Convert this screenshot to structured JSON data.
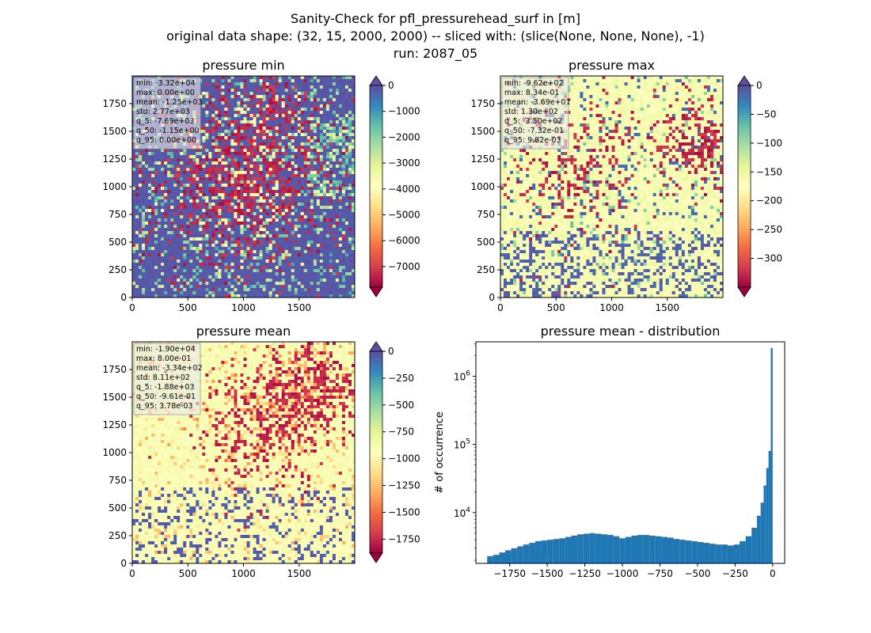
{
  "figure": {
    "title_lines": [
      "Sanity-Check for pfl_pressurehead_surf in [m]",
      "original data shape: (32, 15, 2000, 2000) -- sliced with: (slice(None, None, None), -1)",
      "run: 2087_05"
    ]
  },
  "chart_data": [
    {
      "type": "heatmap",
      "title": "pressure min",
      "xlim": [
        0,
        2000
      ],
      "ylim": [
        0,
        2000
      ],
      "x_ticks": [
        "0",
        "500",
        "1000",
        "1500"
      ],
      "y_ticks": [
        "0",
        "250",
        "500",
        "750",
        "1000",
        "1250",
        "1500",
        "1750"
      ],
      "colormap": "Spectral",
      "colorbar": {
        "range": [
          -7800,
          0
        ],
        "ticks": [
          0,
          -1000,
          -2000,
          -3000,
          -4000,
          -5000,
          -6000,
          -7000
        ],
        "tick_labels": [
          "0",
          "−1000",
          "−2000",
          "−3000",
          "−4000",
          "−5000",
          "−6000",
          "−7000"
        ],
        "extend": "both"
      },
      "stats": [
        "min: -3.32e+04",
        "max: 0.00e+00",
        "mean: -1.25e+03",
        "std: 2.77e+03",
        "q_5: -7.69e+03",
        "q_50: -1.15e+00",
        "q_95: 0.00e+00"
      ]
    },
    {
      "type": "heatmap",
      "title": "pressure max",
      "xlim": [
        0,
        2000
      ],
      "ylim": [
        0,
        2000
      ],
      "x_ticks": [
        "0",
        "500",
        "1000",
        "1500"
      ],
      "y_ticks": [
        "0",
        "250",
        "500",
        "750",
        "1000",
        "1250",
        "1500",
        "1750"
      ],
      "colormap": "Spectral",
      "colorbar": {
        "range": [
          -350,
          0
        ],
        "ticks": [
          0,
          -50,
          -100,
          -150,
          -200,
          -250,
          -300
        ],
        "tick_labels": [
          "0",
          "−50",
          "−100",
          "−150",
          "−200",
          "−250",
          "−300"
        ],
        "extend": "both"
      },
      "stats": [
        "min: -9.62e+02",
        "max: 8.34e-01",
        "mean: -3.69e+01",
        "std: 1.30e+02",
        "q_5: -3.50e+02",
        "q_50: -7.32e-01",
        "q_95: 9.82e-03"
      ]
    },
    {
      "type": "heatmap",
      "title": "pressure mean",
      "xlim": [
        0,
        2000
      ],
      "ylim": [
        0,
        2000
      ],
      "x_ticks": [
        "0",
        "500",
        "1000",
        "1500"
      ],
      "y_ticks": [
        "0",
        "250",
        "500",
        "750",
        "1000",
        "1250",
        "1500",
        "1750"
      ],
      "colormap": "Spectral",
      "colorbar": {
        "range": [
          -1880,
          0
        ],
        "ticks": [
          0,
          -250,
          -500,
          -750,
          -1000,
          -1250,
          -1500,
          -1750
        ],
        "tick_labels": [
          "0",
          "−250",
          "−500",
          "−750",
          "−1000",
          "−1250",
          "−1500",
          "−1750"
        ],
        "extend": "both"
      },
      "stats": [
        "min: -1.90e+04",
        "max: 8.00e-01",
        "mean: -3.34e+02",
        "std: 8.11e+02",
        "q_5: -1.88e+03",
        "q_50: -9.61e-01",
        "q_95: 3.78e-03"
      ]
    },
    {
      "type": "bar",
      "subtype": "histogram",
      "title": "pressure mean - distribution",
      "xlabel": "",
      "ylabel": "# of occurrence",
      "xlim": [
        -1975,
        80
      ],
      "ylim": [
        1800,
        3200000
      ],
      "yscale": "log",
      "x_ticks": [
        -1750,
        -1500,
        -1250,
        -1000,
        -750,
        -500,
        -250,
        0
      ],
      "x_tick_labels": [
        "−1750",
        "−1500",
        "−1250",
        "−1000",
        "−750",
        "−500",
        "−250",
        "0"
      ],
      "y_ticks": [
        10000,
        100000,
        1000000
      ],
      "y_tick_labels": [
        "10^4",
        "10^5",
        "10^6"
      ],
      "bar_color": "#1f77b4",
      "bins": [
        {
          "x": -1880,
          "count": 2300
        },
        {
          "x": -1840,
          "count": 2400
        },
        {
          "x": -1800,
          "count": 2600
        },
        {
          "x": -1760,
          "count": 2800
        },
        {
          "x": -1720,
          "count": 3000
        },
        {
          "x": -1680,
          "count": 3200
        },
        {
          "x": -1640,
          "count": 3400
        },
        {
          "x": -1600,
          "count": 3600
        },
        {
          "x": -1560,
          "count": 3800
        },
        {
          "x": -1520,
          "count": 3900
        },
        {
          "x": -1480,
          "count": 4000
        },
        {
          "x": -1440,
          "count": 4100
        },
        {
          "x": -1400,
          "count": 4200
        },
        {
          "x": -1360,
          "count": 4400
        },
        {
          "x": -1320,
          "count": 4600
        },
        {
          "x": -1280,
          "count": 4800
        },
        {
          "x": -1240,
          "count": 4900
        },
        {
          "x": -1200,
          "count": 5000
        },
        {
          "x": -1160,
          "count": 4900
        },
        {
          "x": -1120,
          "count": 4800
        },
        {
          "x": -1080,
          "count": 4700
        },
        {
          "x": -1040,
          "count": 4500
        },
        {
          "x": -1000,
          "count": 4200
        },
        {
          "x": -960,
          "count": 4400
        },
        {
          "x": -920,
          "count": 4600
        },
        {
          "x": -880,
          "count": 4700
        },
        {
          "x": -840,
          "count": 4700
        },
        {
          "x": -800,
          "count": 4600
        },
        {
          "x": -760,
          "count": 4500
        },
        {
          "x": -720,
          "count": 4400
        },
        {
          "x": -680,
          "count": 4300
        },
        {
          "x": -640,
          "count": 4100
        },
        {
          "x": -600,
          "count": 4000
        },
        {
          "x": -560,
          "count": 3900
        },
        {
          "x": -520,
          "count": 3800
        },
        {
          "x": -480,
          "count": 3700
        },
        {
          "x": -440,
          "count": 3600
        },
        {
          "x": -400,
          "count": 3500
        },
        {
          "x": -360,
          "count": 3400
        },
        {
          "x": -320,
          "count": 3400
        },
        {
          "x": -280,
          "count": 3300
        },
        {
          "x": -240,
          "count": 3400
        },
        {
          "x": -200,
          "count": 3800
        },
        {
          "x": -160,
          "count": 4500
        },
        {
          "x": -120,
          "count": 6000
        },
        {
          "x": -90,
          "count": 9000
        },
        {
          "x": -70,
          "count": 14000
        },
        {
          "x": -50,
          "count": 25000
        },
        {
          "x": -35,
          "count": 45000
        },
        {
          "x": -20,
          "count": 80000
        },
        {
          "x": -5,
          "count": 2600000
        }
      ]
    }
  ]
}
